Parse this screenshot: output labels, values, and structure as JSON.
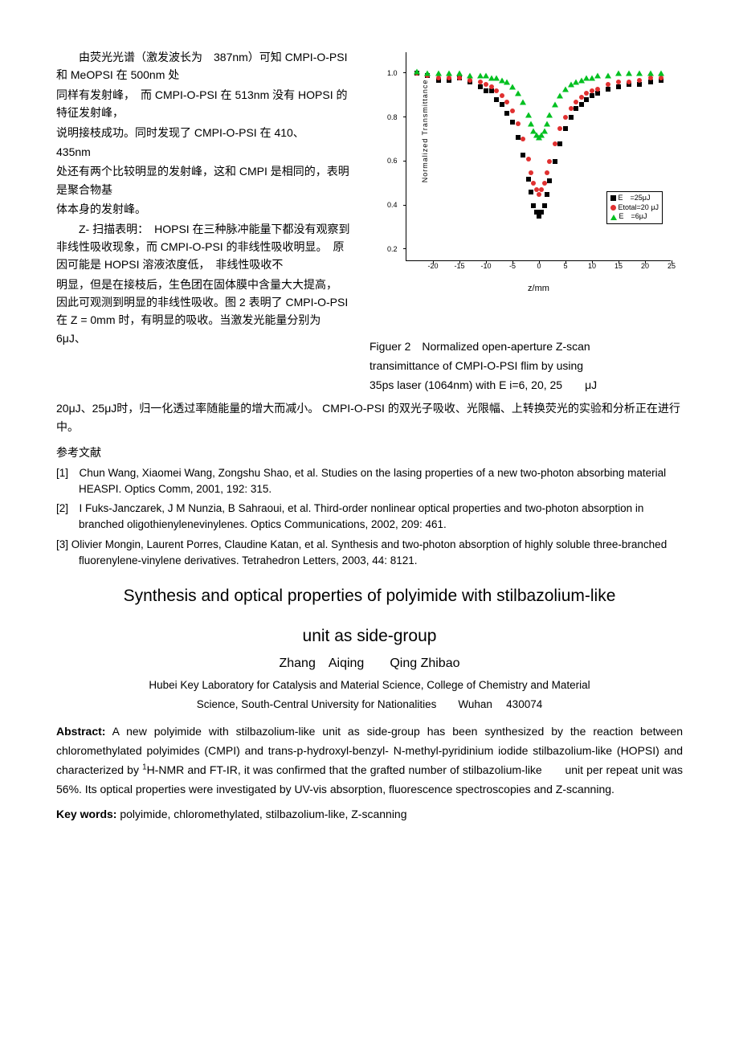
{
  "left": {
    "p1": "由荧光光谱（激发波长为　387nm）可知 CMPI-O-PSI　和 MeOPSI 在 500nm 处",
    "p2": "同样有发射峰，　而 CMPI-O-PSI 在 513nm 没有 HOPSI 的特征发射峰，",
    "p3": "说明接枝成功。同时发现了 CMPI-O-PSI 在 410、",
    "p4": "435nm",
    "p5": "处还有两个比较明显的发射峰，这和 CMPI 是相同的，表明是聚合物基",
    "p6": "体本身的发射峰。",
    "p7": "Z- 扫描表明：　HOPSI 在三种脉冲能量下都没有观察到非线性吸收现象，而 CMPI-O-PSI 的非线性吸收明显。　原因可能是 HOPSI 溶液浓度低，　非线性吸收不",
    "p8": "明显，但是在接枝后，生色团在固体膜中含量大大提高，　因此可观测到明显的非线性吸收。图 2 表明了 CMPI-O-PSI　在 Z = 0mm 时，有明显的吸收。当激发光能量分别为　　6μJ、"
  },
  "figure": {
    "y_label": "Normalized Transmittance",
    "x_label": "z/mm",
    "x_ticks": [
      -20,
      -15,
      -10,
      -5,
      0,
      5,
      10,
      15,
      20,
      25
    ],
    "y_ticks": [
      0.2,
      0.4,
      0.6,
      0.8,
      1.0
    ],
    "xlim": [
      -25,
      25
    ],
    "ylim": [
      0.15,
      1.1
    ],
    "legend": [
      {
        "marker": "sq",
        "color": "#000000",
        "label": "E　=25μJ"
      },
      {
        "marker": "ci",
        "color": "#e03030",
        "label": "Etotal=20 μJ"
      },
      {
        "marker": "tr",
        "color": "#00c020",
        "label": "E　=6μJ"
      }
    ],
    "series": {
      "E25": {
        "marker": "sq",
        "color": "#000000",
        "data": [
          [
            -23,
            1.0
          ],
          [
            -21,
            0.99
          ],
          [
            -19,
            0.97
          ],
          [
            -17,
            0.97
          ],
          [
            -15,
            0.98
          ],
          [
            -13,
            0.96
          ],
          [
            -11,
            0.94
          ],
          [
            -10,
            0.92
          ],
          [
            -9,
            0.92
          ],
          [
            -8,
            0.88
          ],
          [
            -7,
            0.86
          ],
          [
            -6,
            0.82
          ],
          [
            -5,
            0.78
          ],
          [
            -4,
            0.71
          ],
          [
            -3,
            0.63
          ],
          [
            -2,
            0.52
          ],
          [
            -1.5,
            0.46
          ],
          [
            -1,
            0.4
          ],
          [
            -0.5,
            0.37
          ],
          [
            0,
            0.35
          ],
          [
            0.5,
            0.37
          ],
          [
            1,
            0.4
          ],
          [
            1.5,
            0.45
          ],
          [
            2,
            0.51
          ],
          [
            3,
            0.6
          ],
          [
            4,
            0.68
          ],
          [
            5,
            0.75
          ],
          [
            6,
            0.8
          ],
          [
            7,
            0.84
          ],
          [
            8,
            0.86
          ],
          [
            9,
            0.88
          ],
          [
            10,
            0.9
          ],
          [
            11,
            0.91
          ],
          [
            13,
            0.93
          ],
          [
            15,
            0.94
          ],
          [
            17,
            0.95
          ],
          [
            19,
            0.95
          ],
          [
            21,
            0.96
          ],
          [
            23,
            0.97
          ]
        ]
      },
      "E20": {
        "marker": "ci",
        "color": "#e03030",
        "data": [
          [
            -23,
            1.0
          ],
          [
            -21,
            0.99
          ],
          [
            -19,
            0.98
          ],
          [
            -17,
            0.98
          ],
          [
            -15,
            0.98
          ],
          [
            -13,
            0.97
          ],
          [
            -11,
            0.96
          ],
          [
            -10,
            0.95
          ],
          [
            -9,
            0.94
          ],
          [
            -8,
            0.92
          ],
          [
            -7,
            0.9
          ],
          [
            -6,
            0.87
          ],
          [
            -5,
            0.83
          ],
          [
            -4,
            0.77
          ],
          [
            -3,
            0.7
          ],
          [
            -2,
            0.61
          ],
          [
            -1.5,
            0.55
          ],
          [
            -1,
            0.5
          ],
          [
            -0.5,
            0.47
          ],
          [
            0,
            0.45
          ],
          [
            0.5,
            0.47
          ],
          [
            1,
            0.5
          ],
          [
            1.5,
            0.55
          ],
          [
            2,
            0.6
          ],
          [
            3,
            0.68
          ],
          [
            4,
            0.75
          ],
          [
            5,
            0.8
          ],
          [
            6,
            0.84
          ],
          [
            7,
            0.87
          ],
          [
            8,
            0.89
          ],
          [
            9,
            0.91
          ],
          [
            10,
            0.92
          ],
          [
            11,
            0.93
          ],
          [
            13,
            0.95
          ],
          [
            15,
            0.96
          ],
          [
            17,
            0.96
          ],
          [
            19,
            0.97
          ],
          [
            21,
            0.98
          ],
          [
            23,
            0.98
          ]
        ]
      },
      "E6": {
        "marker": "tr",
        "color": "#00c020",
        "data": [
          [
            -23,
            1.01
          ],
          [
            -21,
            1.0
          ],
          [
            -19,
            1.0
          ],
          [
            -17,
            1.0
          ],
          [
            -15,
            1.0
          ],
          [
            -13,
            0.99
          ],
          [
            -11,
            0.99
          ],
          [
            -10,
            0.99
          ],
          [
            -9,
            0.98
          ],
          [
            -8,
            0.98
          ],
          [
            -7,
            0.97
          ],
          [
            -6,
            0.96
          ],
          [
            -5,
            0.94
          ],
          [
            -4,
            0.91
          ],
          [
            -3,
            0.87
          ],
          [
            -2,
            0.81
          ],
          [
            -1.5,
            0.77
          ],
          [
            -1,
            0.74
          ],
          [
            -0.5,
            0.72
          ],
          [
            0,
            0.71
          ],
          [
            0.5,
            0.72
          ],
          [
            1,
            0.74
          ],
          [
            1.5,
            0.77
          ],
          [
            2,
            0.81
          ],
          [
            3,
            0.86
          ],
          [
            4,
            0.9
          ],
          [
            5,
            0.93
          ],
          [
            6,
            0.95
          ],
          [
            7,
            0.96
          ],
          [
            8,
            0.97
          ],
          [
            9,
            0.98
          ],
          [
            10,
            0.98
          ],
          [
            11,
            0.99
          ],
          [
            13,
            0.99
          ],
          [
            15,
            1.0
          ],
          [
            17,
            1.0
          ],
          [
            19,
            1.0
          ],
          [
            21,
            1.0
          ],
          [
            23,
            1.0
          ]
        ]
      }
    },
    "caption1": "Figuer 2　Normalized open-aperture Z-scan",
    "caption2": "transimittance of CMPI-O-PSI flim by using",
    "caption3": "35ps laser (1064nm) with E i=6, 20, 25　　μJ"
  },
  "below": {
    "p1": "20μJ、25μJ时，归一化透过率随能量的增大而减小。 CMPI-O-PSI 的双光子吸收、光限幅、上转换荧光的实验和分析正在进行中。",
    "refs_head": "参考文献",
    "ref1": "[1]　Chun Wang, Xiaomei Wang, Zongshu Shao, et al. Studies on the lasing properties of a new two-photon absorbing material HEASPI. Optics Comm, 2001, 192: 315.",
    "ref2": "[2]　I Fuks-Janczarek, J M Nunzia, B Sahraoui, et al. Third-order nonlinear optical properties and two-photon absorption in branched oligothienylenevinylenes. Optics Communications, 2002, 209: 461.",
    "ref3": "[3] Olivier Mongin, Laurent Porres, Claudine Katan, et al. Synthesis and two-photon absorption of highly soluble three-branched fluorenylene-vinylene derivatives. Tetrahedron Letters, 2003, 44: 8121."
  },
  "title_en_1": "Synthesis and optical properties of polyimide with stilbazolium-like",
  "title_en_2": "unit as side-group",
  "authors": "Zhang　Aiqing　　Qing Zhibao",
  "affil1": "Hubei Key Laboratory for Catalysis and Material Science, College of Chemistry and Material",
  "affil2": "Science, South-Central University for Nationalities　　Wuhan　 430074",
  "abstract_label": "Abstract:",
  "abstract_body": " A new polyimide with stilbazolium-like unit as side-group has been synthesized by the reaction between chloromethylated polyimides (CMPI) and trans-p-hydroxyl-benzyl- N-methyl-pyridinium iodide stilbazolium-like (HOPSI) and characterized by ",
  "abstract_sup": "1",
  "abstract_body2": "H-NMR and FT-IR, it was confirmed  that the grafted number of stilbazolium-like　　unit  per repeat unit  was 56%. Its optical properties were investigated by UV-vis absorption, fluorescence spectroscopies and Z-scanning.",
  "kw_label": "Key words:",
  "kw_body": " polyimide, chloromethylated, stilbazolium-like, Z-scanning"
}
